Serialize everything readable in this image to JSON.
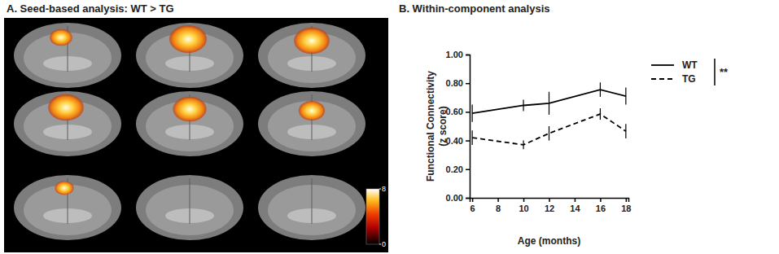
{
  "chart_data": [
    {
      "type": "image",
      "title": "A. Seed-based analysis: WT > TG",
      "colorbar_range": [
        0,
        8
      ],
      "colorbar_ticks": [
        0,
        8
      ]
    },
    {
      "type": "line",
      "title": "B. Within-component analysis",
      "xlabel": "Age (months)",
      "ylabel": [
        "Functional Connectivity",
        "(z score)"
      ],
      "x": [
        6,
        10,
        12,
        16,
        18
      ],
      "series": [
        {
          "name": "WT",
          "color": "#000000",
          "line_style": "solid",
          "values": [
            0.59,
            0.645,
            0.66,
            0.755,
            0.71
          ],
          "errors": [
            0.06,
            0.04,
            0.08,
            0.05,
            0.06
          ]
        },
        {
          "name": "TG",
          "color": "#000000",
          "line_style": "dashed",
          "values": [
            0.42,
            0.37,
            0.45,
            0.585,
            0.465
          ],
          "errors": [
            0.05,
            0.03,
            0.05,
            0.04,
            0.05
          ]
        }
      ],
      "xlim": [
        5.8,
        18.2
      ],
      "xticks": [
        6,
        8,
        10,
        12,
        14,
        16,
        18
      ],
      "ylim": [
        0,
        1
      ],
      "yticks": [
        {
          "value": 0,
          "label": "0.00"
        },
        {
          "value": 0.2,
          "label": "0.20"
        },
        {
          "value": 0.4,
          "label": "0.40"
        },
        {
          "value": 0.6,
          "label": "0.60"
        },
        {
          "value": 0.8,
          "label": "0.80"
        },
        {
          "value": 1,
          "label": "1.00"
        }
      ],
      "legend": "right",
      "annotation": "**"
    }
  ]
}
